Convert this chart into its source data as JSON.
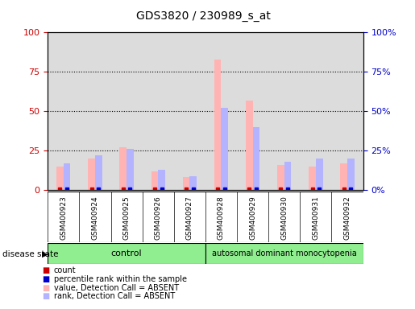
{
  "title": "GDS3820 / 230989_s_at",
  "samples": [
    "GSM400923",
    "GSM400924",
    "GSM400925",
    "GSM400926",
    "GSM400927",
    "GSM400928",
    "GSM400929",
    "GSM400930",
    "GSM400931",
    "GSM400932"
  ],
  "value_absent": [
    15,
    20,
    27,
    12,
    8,
    83,
    57,
    16,
    15,
    17
  ],
  "rank_absent": [
    17,
    22,
    26,
    13,
    9,
    52,
    40,
    18,
    20,
    20
  ],
  "ylim": [
    0,
    100
  ],
  "yticks": [
    0,
    25,
    50,
    75,
    100
  ],
  "control_samples": 5,
  "control_label": "control",
  "disease_label": "autosomal dominant monocytopenia",
  "value_color": "#FFB3B3",
  "rank_color": "#B3B3FF",
  "count_color": "#CC0000",
  "percentile_color": "#0000CC",
  "control_color": "#90EE90",
  "disease_color": "#90EE90",
  "bg_color": "#DCDCDC",
  "right_axis_color": "#0000CC",
  "left_axis_color": "#CC0000"
}
